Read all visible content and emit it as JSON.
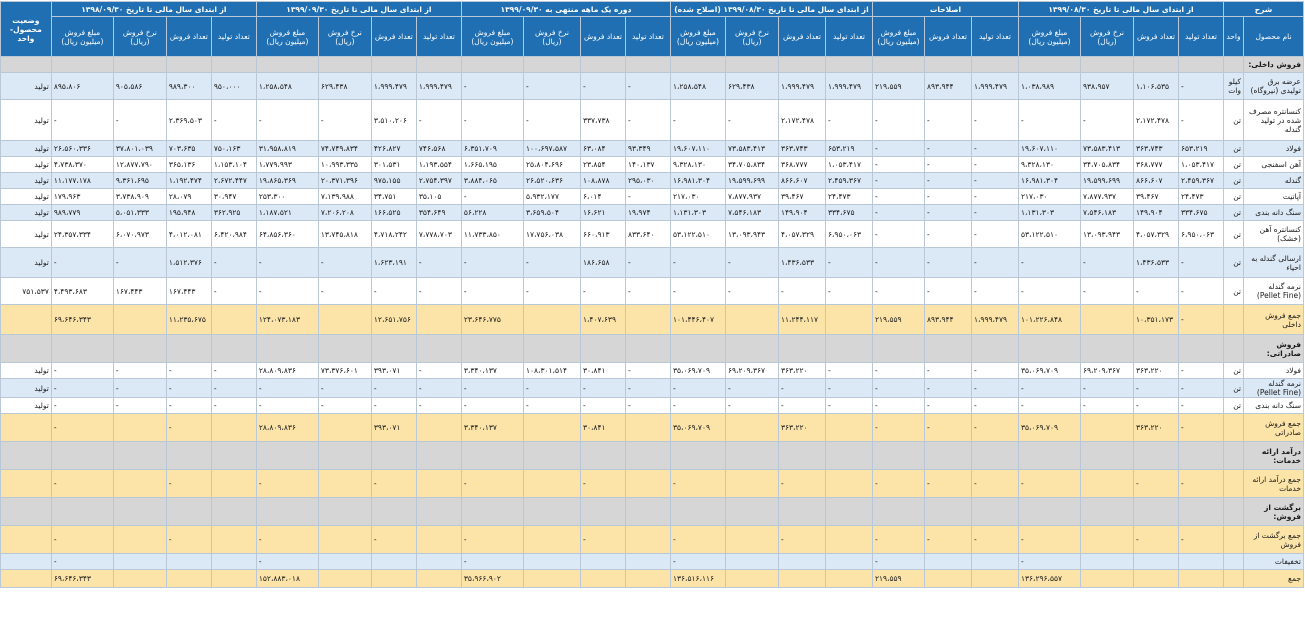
{
  "header": {
    "desc": "شرح",
    "product_name": "نام محصول",
    "unit": "واحد",
    "status": "وضعیت محصول- واحد",
    "groups": [
      "از ابتدای سال مالی تا تاریخ ۱۳۹۹/۰۸/۳۰",
      "اصلاحات",
      "از ابتدای سال مالی تا تاریخ ۱۳۹۹/۰۸/۳۰ (اصلاح شده)",
      "دوره یک ماهه منتهی به ۱۳۹۹/۰۹/۳۰",
      "از ابتدای سال مالی تا تاریخ ۱۳۹۹/۰۹/۳۰",
      "از ابتدای سال مالی تا تاریخ ۱۳۹۸/۰۹/۳۰"
    ],
    "group_subs": [
      [
        "تعداد تولید",
        "تعداد فروش",
        "نرخ فروش (ریال)",
        "مبلغ فروش (میلیون ریال)"
      ],
      [
        "تعداد تولید",
        "تعداد فروش",
        "مبلغ فروش (میلیون ریال)"
      ],
      [
        "تعداد تولید",
        "تعداد فروش",
        "نرخ فروش (ریال)",
        "مبلغ فروش (میلیون ریال)"
      ],
      [
        "تعداد تولید",
        "تعداد فروش",
        "نرخ فروش (ریال)",
        "مبلغ فروش (میلیون ریال)"
      ],
      [
        "تعداد تولید",
        "تعداد فروش",
        "نرخ فروش (ریال)",
        "مبلغ فروش (میلیون ریال)"
      ],
      [
        "تعداد تولید",
        "تعداد فروش",
        "نرخ فروش (ریال)",
        "مبلغ فروش (میلیون ریال)"
      ]
    ]
  },
  "rows": [
    {
      "type": "section",
      "cells": [
        "فروش داخلی:",
        "",
        "",
        "",
        "",
        "",
        "",
        "",
        "",
        "",
        "",
        "",
        "",
        "",
        "",
        "",
        "",
        "",
        "",
        "",
        "",
        "",
        "",
        "",
        "",
        "",
        ""
      ]
    },
    {
      "type": "blue",
      "cells": [
        "عرضه برق تولیدی (نیروگاه)",
        "کیلو وات",
        "-",
        "۱،۱۰۶،۵۳۵",
        "۹۳۸،۹۵۷",
        "۱،۰۳۸،۹۸۹",
        "۱،۹۹۹،۴۷۹",
        "۸۹۳،۹۴۴",
        "۲۱۹،۵۵۹",
        "۱،۹۹۹،۴۷۹",
        "۱،۹۹۹،۴۷۹",
        "۶۲۹،۴۳۸",
        "۱،۲۵۸،۵۴۸",
        "-",
        "-",
        "-",
        "-",
        "۱،۹۹۹،۴۷۹",
        "۱،۹۹۹،۴۷۹",
        "۶۲۹،۴۳۸",
        "۱،۲۵۸،۵۴۸",
        "۹۵۰،۰۰۰",
        "۹۸۹،۳۰۰",
        "۹۰۵،۵۸۶",
        "۸۹۵،۸۰۶",
        "تولید"
      ]
    },
    {
      "type": "white",
      "cells": [
        "کنسانتره مصرف شده در تولید گندله",
        "تن",
        "-",
        "۲،۱۷۲،۴۷۸",
        "-",
        "-",
        "-",
        "-",
        "-",
        "-",
        "۲،۱۷۲،۴۷۸",
        "-",
        "-",
        "-",
        "۳۳۷،۷۳۸",
        "-",
        "-",
        "-",
        "۳،۵۱۰،۲۰۶",
        "-",
        "-",
        "-",
        "۲،۳۶۹،۵۰۳",
        "-",
        "-",
        "تولید"
      ]
    },
    {
      "type": "blue",
      "cells": [
        "فولاد",
        "تن",
        "۶۵۳،۲۱۹",
        "۳۶۳،۷۴۳",
        "۷۳،۵۸۳،۴۱۳",
        "۱۹،۶۰۷،۱۱۰",
        "-",
        "-",
        "-",
        "۶۵۳،۲۱۹",
        "۳۶۳،۷۴۳",
        "۷۳،۵۸۳،۴۱۳",
        "۱۹،۶۰۷،۱۱۰",
        "۹۳،۳۴۹",
        "۶۳،۰۸۴",
        "۱۰۰،۶۹۷،۵۸۷",
        "۶،۳۵۱،۷۰۹",
        "۷۴۶،۵۶۸",
        "۴۲۶،۸۲۷",
        "۷۴،۷۴۹،۸۳۴",
        "۳۱،۹۵۸،۸۱۹",
        "۷۵۰،۱۶۳",
        "۷۰۳،۶۳۵",
        "۳۷،۸۰۱،۰۳۹",
        "۲۶،۵۶۰،۳۳۶",
        "تولید"
      ]
    },
    {
      "type": "white",
      "cells": [
        "آهن اسفنجی",
        "تن",
        "۱،۰۵۳،۴۱۷",
        "۳۶۸،۷۷۷",
        "۳۴،۷۰۵،۸۳۴",
        "۹،۳۲۸،۱۳۰",
        "-",
        "-",
        "-",
        "۱،۰۵۳،۴۱۷",
        "۳۶۸،۷۷۷",
        "۳۴،۷۰۵،۸۳۴",
        "۹،۳۲۸،۱۳۰",
        "۱۴۰،۱۳۷",
        "۲۳،۸۵۴",
        "۲۵،۸۰۴،۶۹۶",
        "۱،۶۶۵،۱۹۵",
        "۱،۱۹۳،۵۵۴",
        "۳۰۱،۵۳۱",
        "۱۰،۹۹۳،۳۳۵",
        "۱،۷۷۹،۹۹۳",
        "۱،۱۵۳،۱۰۴",
        "۳۶۵،۱۳۶",
        "۱۲،۸۷۷،۷۹۰",
        "۴،۷۳۸،۳۷۰",
        "تولید"
      ]
    },
    {
      "type": "blue",
      "cells": [
        "گندله",
        "تن",
        "۲،۴۵۹،۳۶۷",
        "۸۶۶،۶۰۷",
        "۱۹،۵۹۹،۶۹۹",
        "۱۶،۹۸۱،۳۰۴",
        "-",
        "-",
        "-",
        "۲،۴۵۹،۳۶۷",
        "۸۶۶،۶۰۷",
        "۱۹،۵۹۹،۶۹۹",
        "۱۶،۹۸۱،۳۰۴",
        "۲۹۵،۰۳۰",
        "۱۰۸،۸۷۸",
        "۲۶،۵۲۰،۶۳۶",
        "۳،۸۸۴،۰۶۵",
        "۲،۷۵۴،۳۹۷",
        "۹۷۵،۱۵۵",
        "۲۰،۳۷۱،۳۹۶",
        "۱۹،۸۶۵،۳۶۹",
        "۲،۶۷۲،۴۴۷",
        "۱،۱۹۲،۴۷۴",
        "۹،۳۶۱،۶۹۵",
        "۱۱،۱۷۷،۱۷۸",
        "تولید"
      ]
    },
    {
      "type": "white",
      "cells": [
        "آپاتیت",
        "تن",
        "۲۴،۴۷۳",
        "۳۹،۴۶۷",
        "۷،۸۷۷،۹۳۷",
        "۲۱۷،۰۳۰",
        "-",
        "-",
        "-",
        "۲۴،۴۷۳",
        "۳۹،۴۶۷",
        "۷،۸۷۷،۹۳۷",
        "۲۱۷،۰۳۰",
        "-",
        "۶،۰۱۴",
        "۵،۹۳۲،۱۷۷",
        "-",
        "۳۵،۱۰۵",
        "۳۴،۷۵۱",
        "۷،۱۳۹،۹۸۸",
        "۲۵۳،۳۰۰",
        "۳۰،۹۴۷",
        "۲۸،۰۷۹",
        "۳،۷۳۸،۹۰۹",
        "۱۷۹،۹۶۳",
        "تولید"
      ]
    },
    {
      "type": "blue",
      "cells": [
        "سنگ دانه بندی",
        "تن",
        "۳۳۴،۶۷۵",
        "۱۴۹،۹۰۴",
        "۷،۵۴۶،۱۸۳",
        "۱،۱۳۱،۳۰۳",
        "-",
        "-",
        "-",
        "۳۳۴،۶۷۵",
        "۱۴۹،۹۰۴",
        "۷،۵۴۶،۱۸۳",
        "۱،۱۳۱،۳۰۳",
        "۱۹،۹۷۴",
        "۱۶،۶۲۱",
        "۳،۶۵۹،۵۰۴",
        "۵۶،۲۲۸",
        "۳۵۴،۶۴۹",
        "۱۶۶،۵۲۵",
        "۷،۲۰۶،۲۰۸",
        "۱،۱۸۷،۵۲۱",
        "۳۶۲،۹۲۵",
        "۱۹۵،۹۴۸",
        "۵،۰۵۱،۳۳۳",
        "۹۸۹،۷۷۹",
        "تولید"
      ]
    },
    {
      "type": "white",
      "cells": [
        "کنسانتره آهن (خشک)",
        "تن",
        "۶،۹۵۰،۰۶۳",
        "۴،۰۵۷،۳۲۹",
        "۱۳،۰۹۳،۹۴۳",
        "۵۳،۱۲۲،۵۱۰",
        "-",
        "-",
        "-",
        "۶،۹۵۰،۰۶۳",
        "۴،۰۵۷،۳۲۹",
        "۱۳،۰۹۳،۹۴۳",
        "۵۳،۱۲۲،۵۱۰",
        "۸۳۳،۶۴۰",
        "۶۶۰،۹۱۳",
        "۱۷،۷۵۶،۰۳۸",
        "۱۱،۷۳۳،۸۵۰",
        "۷،۷۷۸،۷۰۳",
        "۴،۷۱۸،۲۴۲",
        "۱۳،۷۴۵،۸۱۸",
        "۶۴،۸۵۶،۳۶۰",
        "۶،۴۲۰،۹۸۴",
        "۴،۰۱۲،۰۸۱",
        "۶،۰۷۰،۹۷۳",
        "۲۴،۳۵۷،۳۳۴",
        "تولید"
      ]
    },
    {
      "type": "blue",
      "cells": [
        "ارسالی گندله به احیاء",
        "تن",
        "-",
        "۱،۴۳۶،۵۳۳",
        "-",
        "-",
        "-",
        "-",
        "-",
        "-",
        "۱،۴۳۶،۵۳۳",
        "-",
        "-",
        "-",
        "۱۸۶،۶۵۸",
        "-",
        "-",
        "-",
        "۱،۶۲۳،۱۹۱",
        "-",
        "-",
        "-",
        "۱،۵۱۲،۳۷۶",
        "-",
        "-",
        "تولید"
      ]
    },
    {
      "type": "white",
      "cells": [
        "نرمه گندله (Pellet Fine)",
        "تن",
        "-",
        "-",
        "-",
        "-",
        "-",
        "-",
        "-",
        "-",
        "-",
        "-",
        "-",
        "-",
        "-",
        "-",
        "-",
        "-",
        "-",
        "-",
        "-",
        "-",
        "۱۶۷،۴۴۳",
        "۱۶۷،۴۴۳",
        "۴،۴۹۳،۶۸۳",
        "۷۵۱،۵۳۷",
        "تولید"
      ]
    },
    {
      "type": "total",
      "cells": [
        "جمع فروش داخلی",
        "",
        "-",
        "۱۰،۳۵۱،۱۷۳",
        "",
        "۱۰۱،۲۲۶،۸۴۸",
        "۱،۹۹۹،۴۷۹",
        "۸۹۳،۹۴۴",
        "۲۱۹،۵۵۹",
        "",
        "۱۱،۲۴۴،۱۱۷",
        "",
        "۱۰۱،۴۴۶،۴۰۷",
        "",
        "۱،۴۰۷،۶۳۹",
        "",
        "۲۳،۶۴۶،۷۷۵",
        "",
        "۱۲،۶۵۱،۷۵۶",
        "",
        "۱۲۴،۰۷۳،۱۸۳",
        "",
        "۱۱،۲۳۵،۶۷۵",
        "",
        "۶۹،۶۴۶،۳۴۳",
        ""
      ]
    },
    {
      "type": "section",
      "cells": [
        "فروش صادراتی:",
        "",
        "",
        "",
        "",
        "",
        "",
        "",
        "",
        "",
        "",
        "",
        "",
        "",
        "",
        "",
        "",
        "",
        "",
        "",
        "",
        "",
        "",
        "",
        "",
        "",
        ""
      ]
    },
    {
      "type": "white",
      "cells": [
        "فولاد",
        "تن",
        "-",
        "۳۶۳،۲۲۰",
        "۶۹،۲۰۹،۳۶۷",
        "۳۵،۰۶۹،۷۰۹",
        "-",
        "-",
        "-",
        "-",
        "۳۶۳،۲۲۰",
        "۶۹،۲۰۹،۳۶۷",
        "۳۵،۰۶۹،۷۰۹",
        "-",
        "۳۰،۸۴۱",
        "۱۰۸،۳۰۱،۵۱۴",
        "۳،۳۴۰،۱۳۷",
        "-",
        "۳۹۳،۰۷۱",
        "۷۳،۳۷۶،۶۰۱",
        "۲۸،۸۰۹،۸۳۶",
        "-",
        "-",
        "-",
        "-",
        "تولید"
      ]
    },
    {
      "type": "blue",
      "cells": [
        "نرمه گندله (Pellet Fine)",
        "تن",
        "-",
        "-",
        "-",
        "-",
        "-",
        "-",
        "-",
        "-",
        "-",
        "-",
        "-",
        "-",
        "-",
        "-",
        "-",
        "-",
        "-",
        "-",
        "-",
        "-",
        "-",
        "-",
        "-",
        "تولید"
      ]
    },
    {
      "type": "white",
      "cells": [
        "سنگ دانه بندی",
        "تن",
        "-",
        "-",
        "-",
        "-",
        "-",
        "-",
        "-",
        "-",
        "-",
        "-",
        "-",
        "-",
        "-",
        "-",
        "-",
        "-",
        "-",
        "-",
        "-",
        "-",
        "-",
        "-",
        "-",
        "تولید"
      ]
    },
    {
      "type": "total",
      "cells": [
        "جمع فروش صادراتی",
        "",
        "-",
        "۳۶۳،۲۲۰",
        "",
        "۳۵،۰۶۹،۷۰۹",
        "-",
        "-",
        "-",
        "",
        "۳۶۳،۲۲۰",
        "",
        "۳۵،۰۶۹،۷۰۹",
        "",
        "۳۰،۸۴۱",
        "",
        "۳،۳۴۰،۱۳۷",
        "",
        "۳۹۳،۰۷۱",
        "",
        "۲۸،۸۰۹،۸۳۶",
        "",
        "-",
        "",
        "-",
        ""
      ]
    },
    {
      "type": "section",
      "cells": [
        "درآمد ارائه خدمات:",
        "",
        "",
        "",
        "",
        "",
        "",
        "",
        "",
        "",
        "",
        "",
        "",
        "",
        "",
        "",
        "",
        "",
        "",
        "",
        "",
        "",
        "",
        "",
        "",
        "",
        ""
      ]
    },
    {
      "type": "total",
      "cells": [
        "جمع درآمد ارائه خدمات",
        "",
        "-",
        "-",
        "",
        "-",
        "-",
        "-",
        "-",
        "",
        "-",
        "",
        "-",
        "",
        "-",
        "",
        "-",
        "",
        "-",
        "",
        "-",
        "",
        "-",
        "",
        "-",
        ""
      ]
    },
    {
      "type": "section",
      "cells": [
        "برگشت از فروش:",
        "",
        "",
        "",
        "",
        "",
        "",
        "",
        "",
        "",
        "",
        "",
        "",
        "",
        "",
        "",
        "",
        "",
        "",
        "",
        "",
        "",
        "",
        "",
        "",
        "",
        ""
      ]
    },
    {
      "type": "total",
      "cells": [
        "جمع برگشت از فروش",
        "",
        "-",
        "-",
        "",
        "-",
        "-",
        "-",
        "-",
        "",
        "-",
        "",
        "-",
        "",
        "-",
        "",
        "-",
        "",
        "-",
        "",
        "-",
        "",
        "-",
        "",
        "-",
        ""
      ]
    },
    {
      "type": "blue",
      "cells": [
        "تخفیفات",
        "",
        "",
        "",
        "",
        "-",
        "",
        "",
        "-",
        "",
        "",
        "",
        "-",
        "",
        "",
        "",
        "-",
        "",
        "",
        "",
        "-",
        "",
        "",
        "",
        "-",
        ""
      ]
    },
    {
      "type": "total",
      "cells": [
        "جمع",
        "",
        "",
        "",
        "",
        "۱۳۶،۲۹۶،۵۵۷",
        "",
        "",
        "۲۱۹،۵۵۹",
        "",
        "",
        "",
        "۱۳۶،۵۱۶،۱۱۶",
        "",
        "",
        "",
        "۳۵،۹۶۶،۹۰۲",
        "",
        "",
        "",
        "۱۵۲،۸۸۳،۰۱۸",
        "",
        "",
        "",
        "۶۹،۶۴۶،۳۴۳",
        ""
      ]
    }
  ]
}
